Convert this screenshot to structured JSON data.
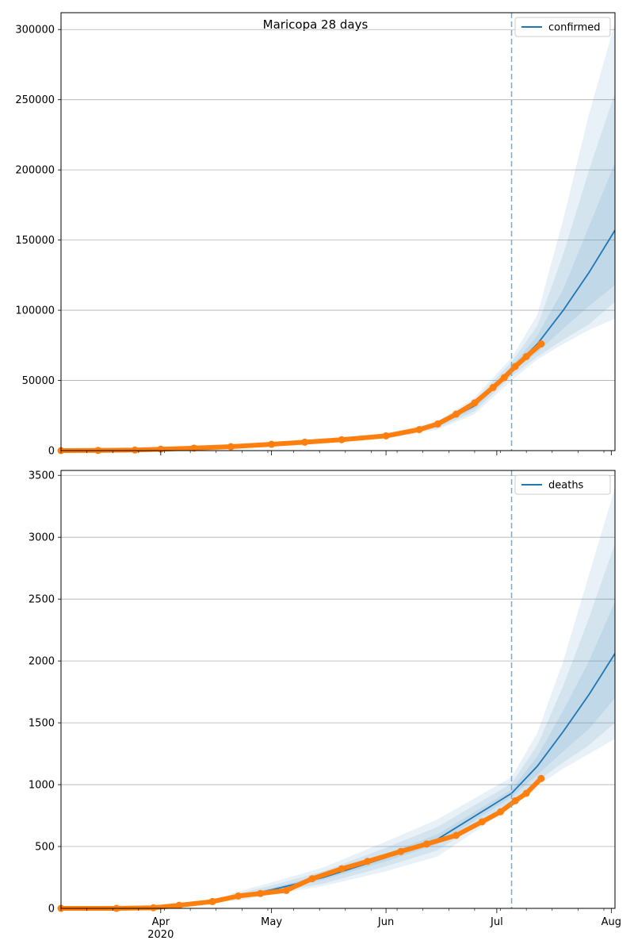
{
  "page_title": "Maricopa 28 days",
  "x_axis": {
    "ticks": [
      {
        "date": "2020-04-01",
        "label": "Apr"
      },
      {
        "date": "2020-05-01",
        "label": "May"
      },
      {
        "date": "2020-06-01",
        "label": "Jun"
      },
      {
        "date": "2020-07-01",
        "label": "Jul"
      },
      {
        "date": "2020-08-01",
        "label": "Aug"
      }
    ],
    "year_label": "2020",
    "year_label_date": "2020-04-01",
    "range": [
      "2020-03-05",
      "2020-08-02"
    ]
  },
  "colors": {
    "forecast_line": "#1f77b4",
    "observed_points": "#ff7f0e",
    "band": "#1f77b4",
    "forecast_start_line": "#6baed6",
    "grid": "#b0b0b0"
  },
  "chart_data": [
    {
      "type": "line",
      "metric": "confirmed",
      "title": "Maricopa 28 days",
      "legend": [
        "confirmed"
      ],
      "legend_position": "top-right",
      "grid": "horizontal",
      "ylim": [
        0,
        312000
      ],
      "yticks": [
        "0",
        "50000",
        "100000",
        "150000",
        "200000",
        "250000",
        "300000"
      ],
      "forecast_start": "2020-07-05",
      "observed": {
        "x": [
          "2020-03-05",
          "2020-03-15",
          "2020-03-25",
          "2020-04-01",
          "2020-04-10",
          "2020-04-20",
          "2020-05-01",
          "2020-05-10",
          "2020-05-20",
          "2020-06-01",
          "2020-06-10",
          "2020-06-15",
          "2020-06-20",
          "2020-06-25",
          "2020-06-30",
          "2020-07-03",
          "2020-07-06",
          "2020-07-09",
          "2020-07-13"
        ],
        "y": [
          0,
          150,
          400,
          1000,
          1800,
          2800,
          4500,
          6000,
          7800,
          10500,
          15000,
          19000,
          26000,
          34000,
          45000,
          52000,
          60000,
          67000,
          76000
        ]
      },
      "forecast": {
        "x": [
          "2020-07-05",
          "2020-07-12",
          "2020-07-19",
          "2020-07-26",
          "2020-08-02"
        ],
        "median": [
          58000,
          76000,
          100000,
          127000,
          157000
        ],
        "bands": [
          {
            "lower": [
              56000,
              70000,
              87000,
              103000,
              118000
            ],
            "upper": [
              60000,
              82000,
              115000,
              160000,
              205000
            ]
          },
          {
            "lower": [
              53000,
              67000,
              79000,
              90000,
              106000
            ],
            "upper": [
              63000,
              89000,
              140000,
              200000,
              255000
            ]
          },
          {
            "lower": [
              50000,
              65000,
              76000,
              86000,
              94000
            ],
            "upper": [
              66000,
              97000,
              165000,
              240000,
              305000
            ]
          }
        ]
      },
      "hindcast": {
        "x": [
          "2020-06-01",
          "2020-06-15",
          "2020-06-25",
          "2020-07-05"
        ],
        "median": [
          10000,
          18000,
          32000,
          58000
        ],
        "bands": [
          {
            "lower": [
              9500,
              17000,
              30000,
              56000
            ],
            "upper": [
              10500,
              19000,
              34000,
              60000
            ]
          },
          {
            "lower": [
              9000,
              16000,
              28000,
              53000
            ],
            "upper": [
              11000,
              20000,
              36000,
              63000
            ]
          },
          {
            "lower": [
              8500,
              15000,
              26000,
              50000
            ],
            "upper": [
              11500,
              21000,
              38000,
              66000
            ]
          }
        ]
      }
    },
    {
      "type": "line",
      "metric": "deaths",
      "legend": [
        "deaths"
      ],
      "legend_position": "top-right",
      "grid": "horizontal",
      "ylim": [
        0,
        3540
      ],
      "yticks": [
        "0",
        "500",
        "1000",
        "1500",
        "2000",
        "2500",
        "3000",
        "3500"
      ],
      "forecast_start": "2020-07-05",
      "observed": {
        "x": [
          "2020-03-05",
          "2020-03-20",
          "2020-03-30",
          "2020-04-06",
          "2020-04-15",
          "2020-04-22",
          "2020-04-28",
          "2020-05-05",
          "2020-05-12",
          "2020-05-20",
          "2020-05-27",
          "2020-06-05",
          "2020-06-12",
          "2020-06-20",
          "2020-06-27",
          "2020-07-02",
          "2020-07-06",
          "2020-07-09",
          "2020-07-13"
        ],
        "y": [
          0,
          0,
          5,
          25,
          55,
          100,
          120,
          145,
          240,
          320,
          380,
          460,
          520,
          590,
          700,
          780,
          870,
          930,
          1050
        ]
      },
      "forecast": {
        "x": [
          "2020-07-05",
          "2020-07-12",
          "2020-07-19",
          "2020-07-26",
          "2020-08-02"
        ],
        "median": [
          930,
          1150,
          1430,
          1730,
          2060
        ],
        "bands": [
          {
            "lower": [
              900,
              1080,
              1270,
              1450,
              1700
            ],
            "upper": [
              960,
              1230,
              1600,
              2000,
              2480
            ]
          },
          {
            "lower": [
              860,
              1030,
              1180,
              1320,
              1500
            ],
            "upper": [
              1010,
              1320,
              1800,
              2350,
              2950
            ]
          },
          {
            "lower": [
              820,
              990,
              1130,
              1250,
              1370
            ],
            "upper": [
              1060,
              1420,
              2000,
              2700,
              3400
            ]
          }
        ]
      },
      "hindcast": {
        "x": [
          "2020-04-20",
          "2020-05-01",
          "2020-05-15",
          "2020-06-01",
          "2020-06-15",
          "2020-07-05"
        ],
        "median": [
          80,
          150,
          250,
          410,
          560,
          930
        ],
        "bands": [
          {
            "lower": [
              75,
              140,
              230,
              380,
              520,
              900
            ],
            "upper": [
              90,
              165,
              270,
              440,
              600,
              960
            ]
          },
          {
            "lower": [
              65,
              125,
              200,
              340,
              470,
              860
            ],
            "upper": [
              105,
              185,
              300,
              490,
              660,
              1010
            ]
          },
          {
            "lower": [
              55,
              110,
              180,
              300,
              420,
              820
            ],
            "upper": [
              120,
              210,
              330,
              540,
              720,
              1060
            ]
          }
        ]
      }
    }
  ]
}
